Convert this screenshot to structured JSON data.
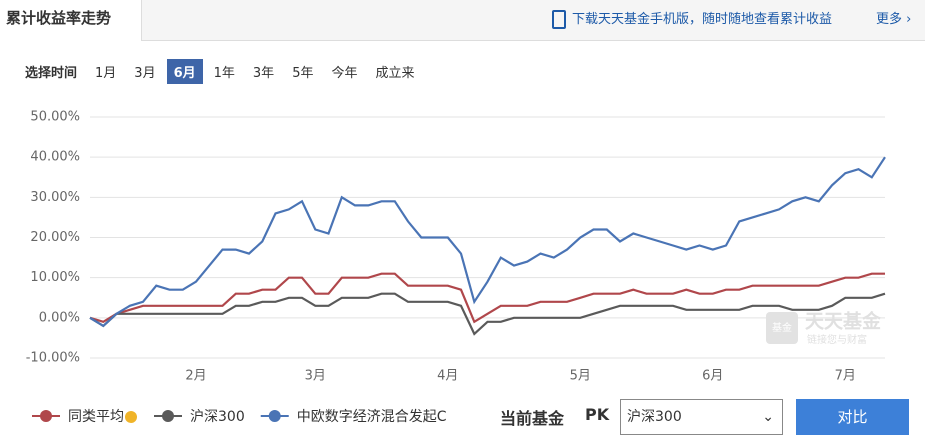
{
  "header": {
    "tab": "累计收益率走势",
    "download": "下载天天基金手机版，随时随地查看累计收益",
    "more": "更多"
  },
  "time_bar": {
    "label": "选择时间",
    "options": [
      "1月",
      "3月",
      "6月",
      "1年",
      "3年",
      "5年",
      "今年",
      "成立来"
    ],
    "active": 2
  },
  "watermark": {
    "logo": "基金",
    "brand": "天天基金",
    "slogan": "链接您与财富"
  },
  "chart_data": {
    "type": "line",
    "categories": [
      null,
      null,
      null,
      null,
      null,
      null,
      null,
      null,
      "2月",
      null,
      null,
      null,
      null,
      null,
      null,
      null,
      null,
      "3月",
      null,
      null,
      null,
      null,
      null,
      null,
      null,
      null,
      null,
      "4月",
      null,
      null,
      null,
      null,
      null,
      null,
      null,
      null,
      null,
      "5月",
      null,
      null,
      null,
      null,
      null,
      null,
      null,
      null,
      null,
      "6月",
      null,
      null,
      null,
      null,
      null,
      null,
      null,
      null,
      null,
      "7月",
      null,
      null,
      null
    ],
    "series": [
      {
        "name": "同类平均",
        "color": "#b0474b",
        "values": [
          0,
          -1,
          1,
          2,
          3,
          3,
          3,
          3,
          3,
          3,
          3,
          6,
          6,
          7,
          7,
          10,
          10,
          6,
          6,
          10,
          10,
          10,
          11,
          11,
          8,
          8,
          8,
          8,
          7,
          -1,
          1,
          3,
          3,
          3,
          4,
          4,
          4,
          5,
          6,
          6,
          6,
          7,
          6,
          6,
          6,
          7,
          6,
          6,
          7,
          7,
          8,
          8,
          8,
          8,
          8,
          8,
          9,
          10,
          10,
          11,
          11
        ]
      },
      {
        "name": "沪深300",
        "color": "#5a5a5a",
        "values": [
          0,
          -2,
          1,
          1,
          1,
          1,
          1,
          1,
          1,
          1,
          1,
          3,
          3,
          4,
          4,
          5,
          5,
          3,
          3,
          5,
          5,
          5,
          6,
          6,
          4,
          4,
          4,
          4,
          3,
          -4,
          -1,
          -1,
          0,
          0,
          0,
          0,
          0,
          0,
          1,
          2,
          3,
          3,
          3,
          3,
          3,
          2,
          2,
          2,
          2,
          2,
          3,
          3,
          3,
          2,
          2,
          2,
          3,
          5,
          5,
          5,
          6
        ]
      },
      {
        "name": "中欧数字经济混合发起C",
        "color": "#4a74b5",
        "values": [
          0,
          -2,
          1,
          3,
          4,
          8,
          7,
          7,
          9,
          13,
          17,
          17,
          16,
          19,
          26,
          27,
          29,
          22,
          21,
          30,
          28,
          28,
          29,
          29,
          24,
          20,
          20,
          20,
          16,
          4,
          9,
          15,
          13,
          14,
          16,
          15,
          17,
          20,
          22,
          22,
          19,
          21,
          20,
          19,
          18,
          17,
          18,
          17,
          18,
          24,
          25,
          26,
          27,
          29,
          30,
          29,
          33,
          36,
          37,
          35,
          40
        ]
      }
    ],
    "ylim": [
      -10,
      50
    ],
    "yticks": [
      {
        "value": -10,
        "label": "-10.00%"
      },
      {
        "value": 0,
        "label": "0.00%"
      },
      {
        "value": 10,
        "label": "10.00%"
      },
      {
        "value": 20,
        "label": "20.00%"
      },
      {
        "value": 30,
        "label": "30.00%"
      },
      {
        "value": 40,
        "label": "40.00%"
      },
      {
        "value": 50,
        "label": "50.00%"
      }
    ],
    "grid": true
  },
  "compare": {
    "label": "当前基金",
    "pk": "PK",
    "selected": "沪深300",
    "button": "对比"
  }
}
